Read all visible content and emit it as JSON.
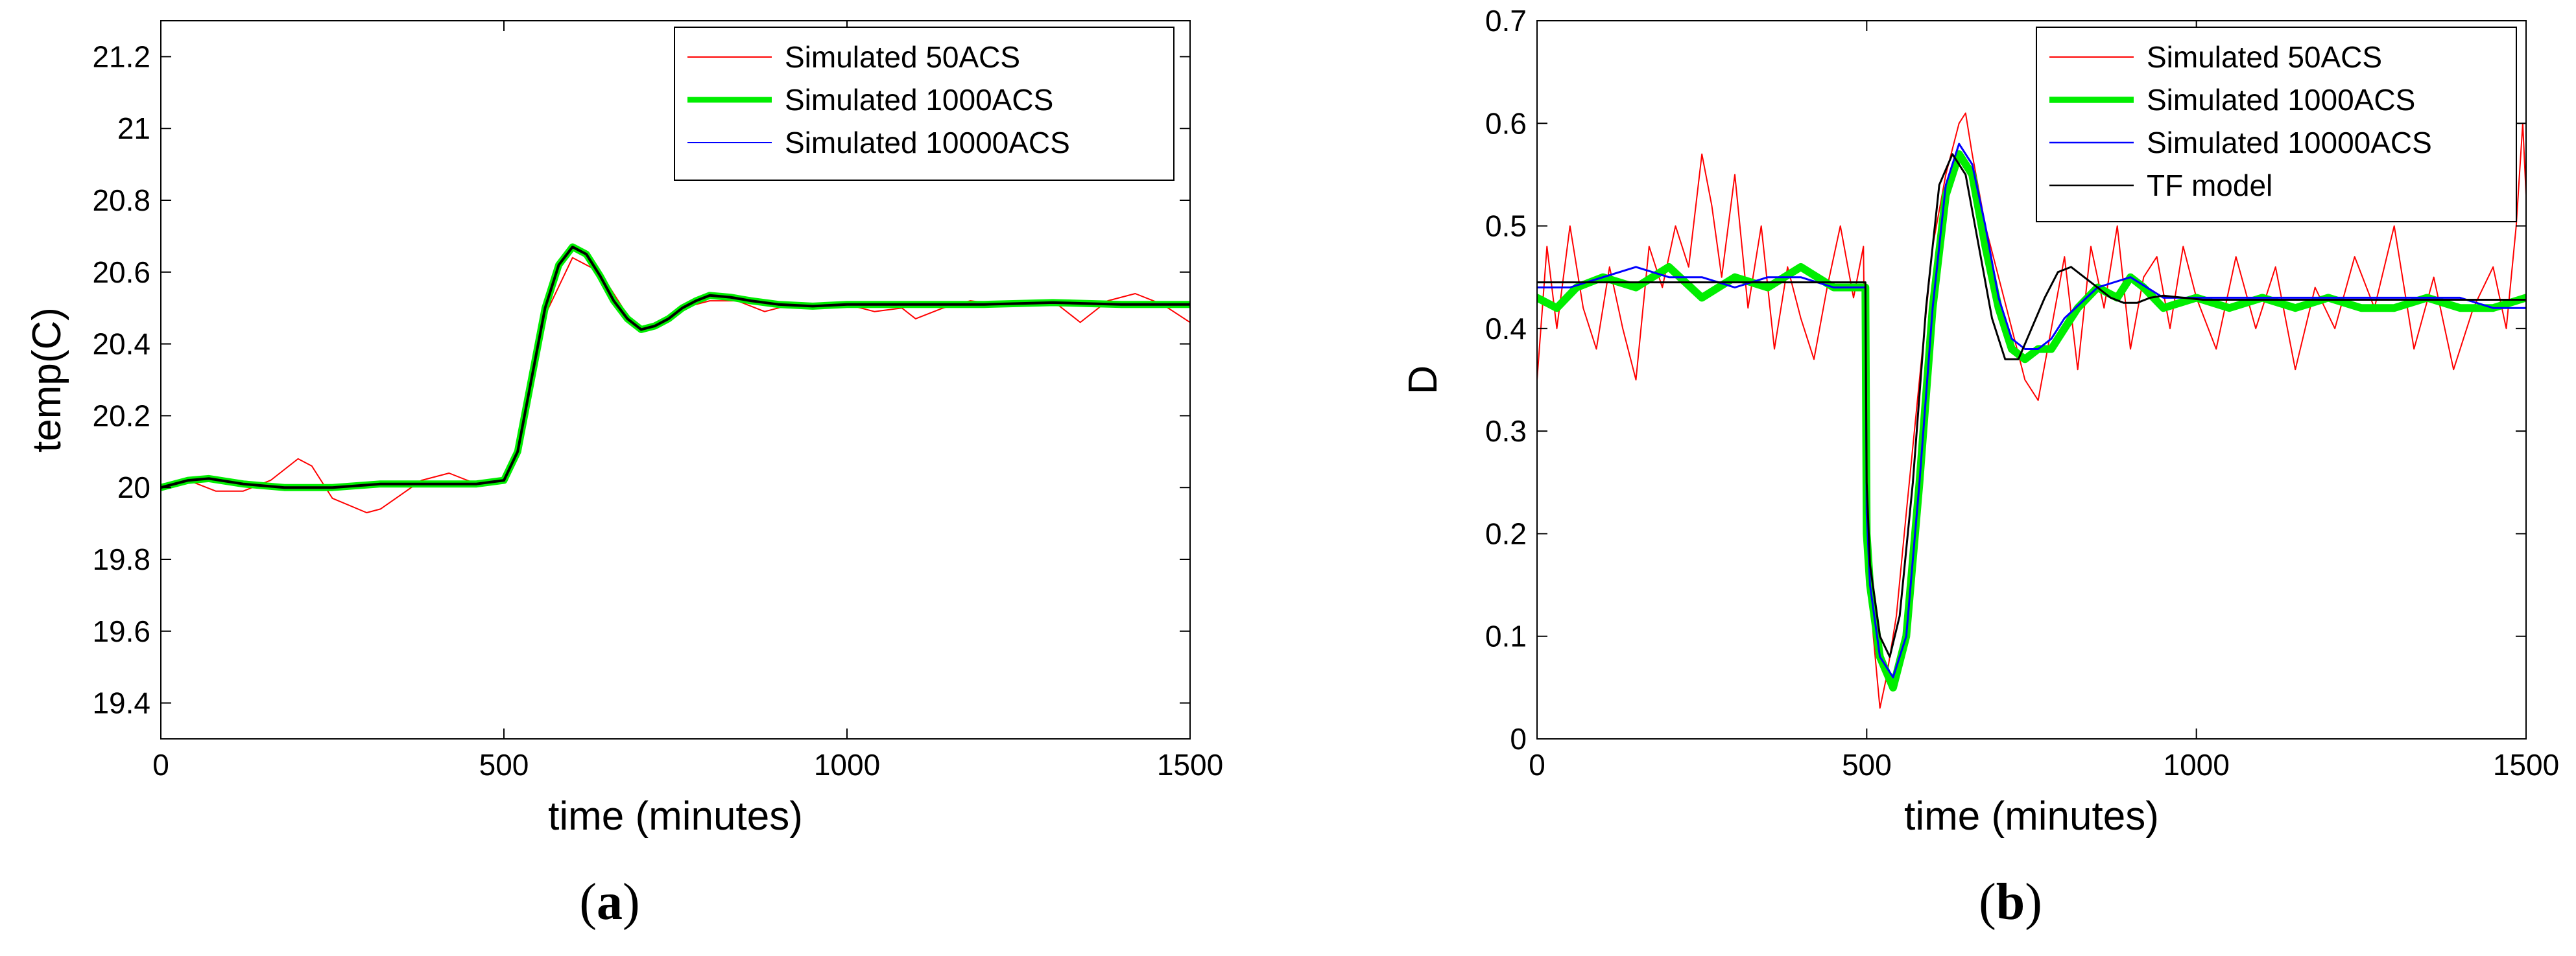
{
  "chart_data": [
    {
      "type": "line",
      "panel_label": {
        "open": "(",
        "letter": "a",
        "close": ")"
      },
      "xlabel": "time (minutes)",
      "ylabel": "temp(C)",
      "xlim": [
        0,
        1500
      ],
      "ylim": [
        19.3,
        21.3
      ],
      "xticks": [
        0,
        500,
        1000,
        1500
      ],
      "yticks": [
        19.4,
        19.6,
        19.8,
        20,
        20.2,
        20.4,
        20.6,
        20.8,
        21,
        21.2
      ],
      "ytick_labels": [
        "19.4",
        "19.6",
        "19.8",
        "20",
        "20.2",
        "20.4",
        "20.6",
        "20.8",
        "21",
        "21.2"
      ],
      "grid": false,
      "legend_position": "top-right",
      "series": [
        {
          "name": "Simulated 50ACS",
          "color": "#ff0000",
          "x": [
            0,
            40,
            80,
            120,
            160,
            200,
            220,
            250,
            300,
            320,
            350,
            380,
            420,
            460,
            500,
            520,
            560,
            600,
            640,
            680,
            700,
            720,
            760,
            800,
            840,
            880,
            920,
            960,
            1000,
            1040,
            1080,
            1100,
            1140,
            1180,
            1220,
            1260,
            1300,
            1340,
            1380,
            1420,
            1460,
            1500
          ],
          "y": [
            20.0,
            20.02,
            19.99,
            19.99,
            20.02,
            20.08,
            20.06,
            19.97,
            19.93,
            19.94,
            19.98,
            20.02,
            20.04,
            20.01,
            20.02,
            20.11,
            20.48,
            20.64,
            20.6,
            20.48,
            20.44,
            20.45,
            20.5,
            20.52,
            20.52,
            20.49,
            20.51,
            20.5,
            20.51,
            20.49,
            20.5,
            20.47,
            20.5,
            20.52,
            20.51,
            20.52,
            20.52,
            20.46,
            20.52,
            20.54,
            20.51,
            20.46
          ]
        },
        {
          "name": "Simulated 1000ACS",
          "color": "#00ee00",
          "x": [
            0,
            40,
            70,
            120,
            180,
            250,
            320,
            400,
            460,
            500,
            520,
            540,
            560,
            580,
            600,
            620,
            640,
            660,
            680,
            700,
            720,
            740,
            760,
            780,
            800,
            830,
            860,
            900,
            950,
            1000,
            1100,
            1200,
            1300,
            1400,
            1500
          ],
          "y": [
            20.0,
            20.02,
            20.025,
            20.01,
            20.0,
            20.0,
            20.01,
            20.01,
            20.01,
            20.02,
            20.1,
            20.3,
            20.5,
            20.62,
            20.67,
            20.65,
            20.59,
            20.52,
            20.47,
            20.44,
            20.45,
            20.47,
            20.5,
            20.52,
            20.535,
            20.53,
            20.52,
            20.51,
            20.505,
            20.51,
            20.51,
            20.51,
            20.515,
            20.51,
            20.51
          ]
        },
        {
          "name": "Simulated 10000ACS",
          "color": "#0000ff",
          "x": [
            0,
            40,
            70,
            120,
            180,
            250,
            320,
            400,
            460,
            500,
            520,
            540,
            560,
            580,
            600,
            620,
            640,
            660,
            680,
            700,
            720,
            740,
            760,
            780,
            800,
            830,
            860,
            900,
            950,
            1000,
            1100,
            1200,
            1300,
            1400,
            1500
          ],
          "y": [
            20.0,
            20.02,
            20.025,
            20.01,
            20.0,
            20.0,
            20.01,
            20.01,
            20.01,
            20.02,
            20.1,
            20.3,
            20.5,
            20.62,
            20.67,
            20.65,
            20.59,
            20.52,
            20.47,
            20.44,
            20.45,
            20.47,
            20.5,
            20.52,
            20.535,
            20.53,
            20.52,
            20.51,
            20.505,
            20.51,
            20.51,
            20.51,
            20.515,
            20.51,
            20.51
          ]
        }
      ],
      "overlay": {
        "color": "#000000",
        "x": [
          0,
          40,
          70,
          120,
          180,
          250,
          320,
          400,
          460,
          500,
          520,
          540,
          560,
          580,
          600,
          620,
          640,
          660,
          680,
          700,
          720,
          740,
          760,
          780,
          800,
          830,
          860,
          900,
          950,
          1000,
          1100,
          1200,
          1300,
          1400,
          1500
        ],
        "y": [
          20.0,
          20.02,
          20.025,
          20.01,
          20.0,
          20.0,
          20.01,
          20.01,
          20.01,
          20.02,
          20.1,
          20.3,
          20.5,
          20.62,
          20.67,
          20.65,
          20.59,
          20.52,
          20.47,
          20.44,
          20.45,
          20.47,
          20.5,
          20.52,
          20.535,
          20.53,
          20.52,
          20.51,
          20.505,
          20.51,
          20.51,
          20.51,
          20.515,
          20.51,
          20.51
        ]
      }
    },
    {
      "type": "line",
      "panel_label": {
        "open": "(",
        "letter": "b",
        "close": ")"
      },
      "xlabel": "time (minutes)",
      "ylabel": "D",
      "xlim": [
        0,
        1500
      ],
      "ylim": [
        0,
        0.7
      ],
      "xticks": [
        0,
        500,
        1000,
        1500
      ],
      "yticks": [
        0,
        0.1,
        0.2,
        0.3,
        0.4,
        0.5,
        0.6,
        0.7
      ],
      "ytick_labels": [
        "0",
        "0.1",
        "0.2",
        "0.3",
        "0.4",
        "0.5",
        "0.6",
        "0.7"
      ],
      "grid": false,
      "legend_position": "top-right",
      "series": [
        {
          "name": "Simulated 50ACS",
          "color": "#ff0000",
          "x": [
            0,
            15,
            30,
            50,
            70,
            90,
            110,
            130,
            150,
            170,
            190,
            210,
            230,
            250,
            265,
            280,
            300,
            320,
            340,
            360,
            380,
            400,
            420,
            440,
            460,
            480,
            495,
            500,
            510,
            520,
            530,
            545,
            560,
            580,
            600,
            620,
            640,
            650,
            660,
            680,
            700,
            720,
            740,
            760,
            780,
            800,
            820,
            840,
            860,
            880,
            900,
            920,
            940,
            960,
            980,
            1000,
            1030,
            1060,
            1090,
            1120,
            1150,
            1180,
            1210,
            1240,
            1270,
            1300,
            1330,
            1360,
            1390,
            1420,
            1450,
            1470,
            1485,
            1495,
            1500
          ],
          "y": [
            0.35,
            0.48,
            0.4,
            0.5,
            0.42,
            0.38,
            0.46,
            0.4,
            0.35,
            0.48,
            0.44,
            0.5,
            0.46,
            0.57,
            0.52,
            0.45,
            0.55,
            0.42,
            0.5,
            0.38,
            0.46,
            0.41,
            0.37,
            0.44,
            0.5,
            0.43,
            0.48,
            0.2,
            0.1,
            0.03,
            0.06,
            0.12,
            0.22,
            0.35,
            0.48,
            0.55,
            0.6,
            0.61,
            0.57,
            0.5,
            0.45,
            0.4,
            0.35,
            0.33,
            0.4,
            0.47,
            0.36,
            0.48,
            0.42,
            0.5,
            0.38,
            0.45,
            0.47,
            0.4,
            0.48,
            0.43,
            0.38,
            0.47,
            0.4,
            0.46,
            0.36,
            0.44,
            0.4,
            0.47,
            0.42,
            0.5,
            0.38,
            0.45,
            0.36,
            0.42,
            0.46,
            0.4,
            0.5,
            0.6,
            0.53
          ]
        },
        {
          "name": "Simulated 1000ACS",
          "color": "#00ee00",
          "x": [
            0,
            30,
            60,
            100,
            150,
            200,
            250,
            300,
            350,
            400,
            450,
            498,
            500,
            505,
            520,
            540,
            560,
            580,
            600,
            620,
            640,
            660,
            680,
            700,
            720,
            740,
            760,
            780,
            800,
            820,
            850,
            880,
            900,
            920,
            950,
            1000,
            1050,
            1100,
            1150,
            1200,
            1250,
            1300,
            1350,
            1400,
            1450,
            1500
          ],
          "y": [
            0.43,
            0.42,
            0.44,
            0.45,
            0.44,
            0.46,
            0.43,
            0.45,
            0.44,
            0.46,
            0.44,
            0.44,
            0.2,
            0.15,
            0.08,
            0.05,
            0.1,
            0.25,
            0.42,
            0.53,
            0.57,
            0.55,
            0.48,
            0.42,
            0.38,
            0.37,
            0.38,
            0.38,
            0.4,
            0.42,
            0.44,
            0.43,
            0.45,
            0.44,
            0.42,
            0.43,
            0.42,
            0.43,
            0.42,
            0.43,
            0.42,
            0.42,
            0.43,
            0.42,
            0.42,
            0.43
          ]
        },
        {
          "name": "Simulated 10000ACS",
          "color": "#0000ff",
          "x": [
            0,
            50,
            100,
            150,
            200,
            250,
            300,
            350,
            400,
            450,
            498,
            500,
            505,
            520,
            540,
            560,
            580,
            600,
            620,
            640,
            660,
            680,
            700,
            720,
            740,
            760,
            780,
            800,
            850,
            900,
            950,
            1000,
            1050,
            1100,
            1200,
            1300,
            1400,
            1450,
            1500
          ],
          "y": [
            0.44,
            0.44,
            0.45,
            0.46,
            0.45,
            0.45,
            0.44,
            0.45,
            0.45,
            0.44,
            0.44,
            0.22,
            0.15,
            0.08,
            0.06,
            0.1,
            0.25,
            0.42,
            0.54,
            0.58,
            0.56,
            0.5,
            0.43,
            0.39,
            0.38,
            0.38,
            0.39,
            0.41,
            0.44,
            0.45,
            0.43,
            0.43,
            0.43,
            0.43,
            0.43,
            0.43,
            0.43,
            0.42,
            0.42
          ]
        },
        {
          "name": "TF model",
          "color": "#000000",
          "x": [
            0,
            498,
            500,
            505,
            520,
            535,
            550,
            570,
            590,
            610,
            630,
            650,
            670,
            690,
            710,
            730,
            750,
            770,
            790,
            810,
            830,
            850,
            870,
            890,
            910,
            930,
            950,
            980,
            1010,
            1050,
            1100,
            1200,
            1300,
            1400,
            1500
          ],
          "y": [
            0.445,
            0.445,
            0.25,
            0.17,
            0.1,
            0.08,
            0.12,
            0.25,
            0.42,
            0.54,
            0.57,
            0.55,
            0.48,
            0.41,
            0.37,
            0.37,
            0.4,
            0.43,
            0.455,
            0.46,
            0.45,
            0.44,
            0.43,
            0.425,
            0.425,
            0.43,
            0.432,
            0.43,
            0.428,
            0.428,
            0.428,
            0.428,
            0.428,
            0.428,
            0.428
          ]
        }
      ]
    }
  ]
}
